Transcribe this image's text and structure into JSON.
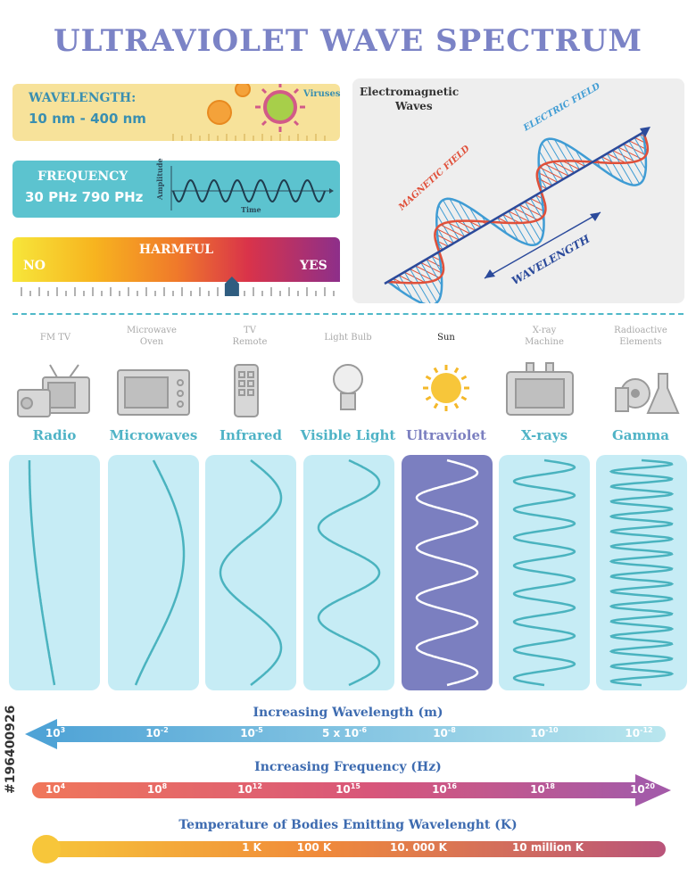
{
  "title": "ULTRAVIOLET WAVE SPECTRUM",
  "wavelength_box": {
    "label": "WAVELENGTH:",
    "value": "10 nm - 400 nm",
    "viruses": "Viruses"
  },
  "frequency_box": {
    "label": "FREQUENCY",
    "value": "30 PHz 790 PHz",
    "amplitude": "Amplitude",
    "time": "Time"
  },
  "harmful_box": {
    "label": "HARMFUL",
    "no": "NO",
    "yes": "YES",
    "level": 0.67
  },
  "em_panel": {
    "title_line1": "Electromagnetic",
    "title_line2": "Waves",
    "electric": "ELECTRIC FIELD",
    "magnetic": "MAGNETIC FIELD",
    "wavelength": "WAVELENGTH"
  },
  "sources": [
    {
      "line1": "FM  TV",
      "line2": "",
      "icon": "radio-tv-icon"
    },
    {
      "line1": "Microwave",
      "line2": "Oven",
      "icon": "microwave-oven-icon"
    },
    {
      "line1": "TV",
      "line2": "Remote",
      "icon": "tv-remote-icon"
    },
    {
      "line1": "Light Bulb",
      "line2": "",
      "icon": "light-bulb-icon"
    },
    {
      "line1": "Sun",
      "line2": "",
      "icon": "sun-icon"
    },
    {
      "line1": "X-ray",
      "line2": "Machine",
      "icon": "xray-machine-icon"
    },
    {
      "line1": "Radioactive",
      "line2": "Elements",
      "icon": "radioactive-elements-icon"
    }
  ],
  "bands": [
    "Radio",
    "Microwaves",
    "Infrared",
    "Visible Light",
    "Ultraviolet",
    "X-rays",
    "Gamma"
  ],
  "wave_cycles": [
    0.25,
    0.6,
    1.5,
    2.5,
    4.5,
    8,
    15
  ],
  "colors": {
    "title": "#7b83c6",
    "band_text": "#4fb3c6",
    "card": "#c6ecf5",
    "card_highlight": "#7b7fc0",
    "wave": "#4ab3bf"
  },
  "wavelength_axis": {
    "title": "Increasing Wavelength (m)",
    "ticks": [
      {
        "base": "10",
        "exp": "3"
      },
      {
        "base": "10",
        "exp": "-2"
      },
      {
        "base": "10",
        "exp": "-5"
      },
      {
        "base": "5 x 10",
        "exp": "-6"
      },
      {
        "base": "10",
        "exp": "-8"
      },
      {
        "base": "10",
        "exp": "-10"
      },
      {
        "base": "10",
        "exp": "-12"
      }
    ]
  },
  "frequency_axis": {
    "title": "Increasing Frequency (Hz)",
    "ticks": [
      {
        "base": "10",
        "exp": "4"
      },
      {
        "base": "10",
        "exp": "8"
      },
      {
        "base": "10",
        "exp": "12"
      },
      {
        "base": "10",
        "exp": "15"
      },
      {
        "base": "10",
        "exp": "16"
      },
      {
        "base": "10",
        "exp": "18"
      },
      {
        "base": "10",
        "exp": "20"
      }
    ]
  },
  "temperature_axis": {
    "title": "Temperature of Bodies Emitting Wavelenght (K)",
    "ticks": [
      "1 K",
      "100 K",
      "10. 000 K",
      "10 million K"
    ]
  },
  "watermark_id": "#196400926"
}
